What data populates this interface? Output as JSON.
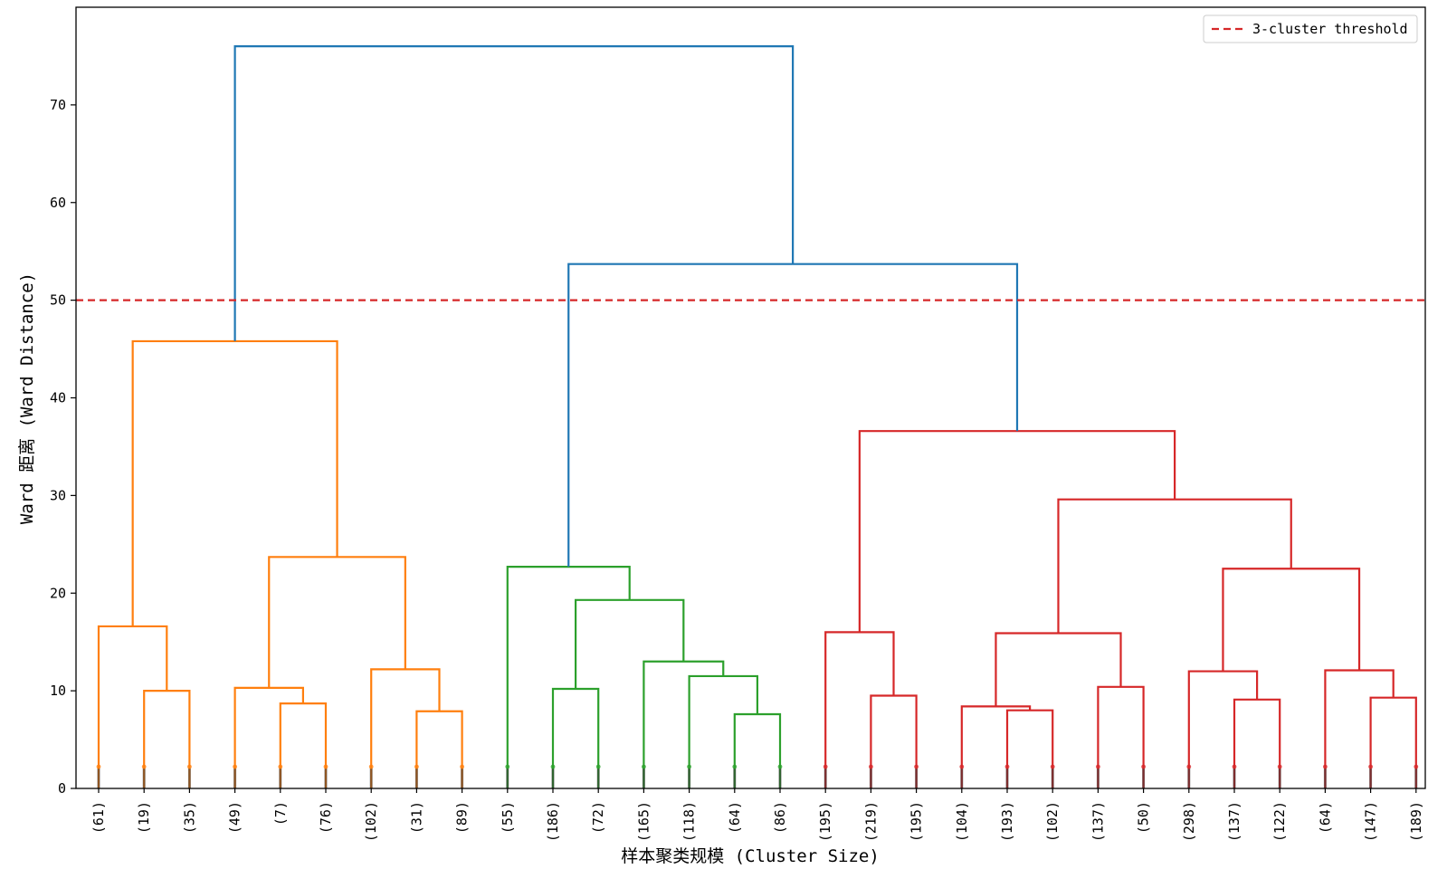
{
  "chart_data": {
    "type": "dendrogram",
    "ylabel": "Ward 距离 (Ward Distance)",
    "xlabel": "样本聚类规模 (Cluster Size)",
    "ylim": [
      0,
      80
    ],
    "yticks": [
      0,
      10,
      20,
      30,
      40,
      50,
      60,
      70
    ],
    "grid": false,
    "legend": {
      "position": "top-right",
      "entries": [
        {
          "label": "3-cluster threshold",
          "style": "dashed",
          "color": "#d62728"
        }
      ]
    },
    "threshold": 50,
    "leaves": [
      "(61)",
      "(19)",
      "(35)",
      "(49)",
      "(7)",
      "(76)",
      "(102)",
      "(31)",
      "(89)",
      "(55)",
      "(186)",
      "(72)",
      "(165)",
      "(118)",
      "(64)",
      "(86)",
      "(195)",
      "(219)",
      "(195)",
      "(104)",
      "(193)",
      "(102)",
      "(137)",
      "(50)",
      "(298)",
      "(137)",
      "(122)",
      "(64)",
      "(147)",
      "(189)"
    ],
    "colors": {
      "orange": "#ff7f0e",
      "green": "#2ca02c",
      "red": "#d62728",
      "blue": "#1f77b4"
    },
    "merges": [
      {
        "children": [
          "L1",
          "L2"
        ],
        "height": 10.0,
        "color": "orange"
      },
      {
        "children": [
          "L0",
          "M0"
        ],
        "height": 16.6,
        "color": "orange"
      },
      {
        "children": [
          "L4",
          "L5"
        ],
        "height": 8.7,
        "color": "orange"
      },
      {
        "children": [
          "L3",
          "M2"
        ],
        "height": 10.3,
        "color": "orange"
      },
      {
        "children": [
          "L7",
          "L8"
        ],
        "height": 7.9,
        "color": "orange"
      },
      {
        "children": [
          "L6",
          "M4"
        ],
        "height": 12.2,
        "color": "orange"
      },
      {
        "children": [
          "M3",
          "M5"
        ],
        "height": 23.7,
        "color": "orange"
      },
      {
        "children": [
          "M1",
          "M6"
        ],
        "height": 45.8,
        "color": "orange"
      },
      {
        "children": [
          "L10",
          "L11"
        ],
        "height": 10.2,
        "color": "green"
      },
      {
        "children": [
          "L14",
          "L15"
        ],
        "height": 7.6,
        "color": "green"
      },
      {
        "children": [
          "L13",
          "M9"
        ],
        "height": 11.5,
        "color": "green"
      },
      {
        "children": [
          "L12",
          "M10"
        ],
        "height": 13.0,
        "color": "green"
      },
      {
        "children": [
          "M8",
          "M11"
        ],
        "height": 19.3,
        "color": "green"
      },
      {
        "children": [
          "L9",
          "M12"
        ],
        "height": 22.7,
        "color": "green"
      },
      {
        "children": [
          "L17",
          "L18"
        ],
        "height": 9.5,
        "color": "red"
      },
      {
        "children": [
          "L16",
          "M14"
        ],
        "height": 16.0,
        "color": "red"
      },
      {
        "children": [
          "L20",
          "L21"
        ],
        "height": 8.0,
        "color": "red"
      },
      {
        "children": [
          "L19",
          "M16"
        ],
        "height": 8.4,
        "color": "red"
      },
      {
        "children": [
          "L22",
          "L23"
        ],
        "height": 10.4,
        "color": "red"
      },
      {
        "children": [
          "M17",
          "M18"
        ],
        "height": 15.9,
        "color": "red"
      },
      {
        "children": [
          "L25",
          "L26"
        ],
        "height": 9.1,
        "color": "red"
      },
      {
        "children": [
          "L24",
          "M20"
        ],
        "height": 12.0,
        "color": "red"
      },
      {
        "children": [
          "L28",
          "L29"
        ],
        "height": 9.3,
        "color": "red"
      },
      {
        "children": [
          "L27",
          "M22"
        ],
        "height": 12.1,
        "color": "red"
      },
      {
        "children": [
          "M21",
          "M23"
        ],
        "height": 22.5,
        "color": "red"
      },
      {
        "children": [
          "M19",
          "M24"
        ],
        "height": 29.6,
        "color": "red"
      },
      {
        "children": [
          "M15",
          "M25"
        ],
        "height": 36.6,
        "color": "red"
      },
      {
        "children": [
          "M13",
          "M26"
        ],
        "height": 53.7,
        "color": "blue"
      },
      {
        "children": [
          "M7",
          "M27"
        ],
        "height": 76.0,
        "color": "blue"
      }
    ]
  }
}
